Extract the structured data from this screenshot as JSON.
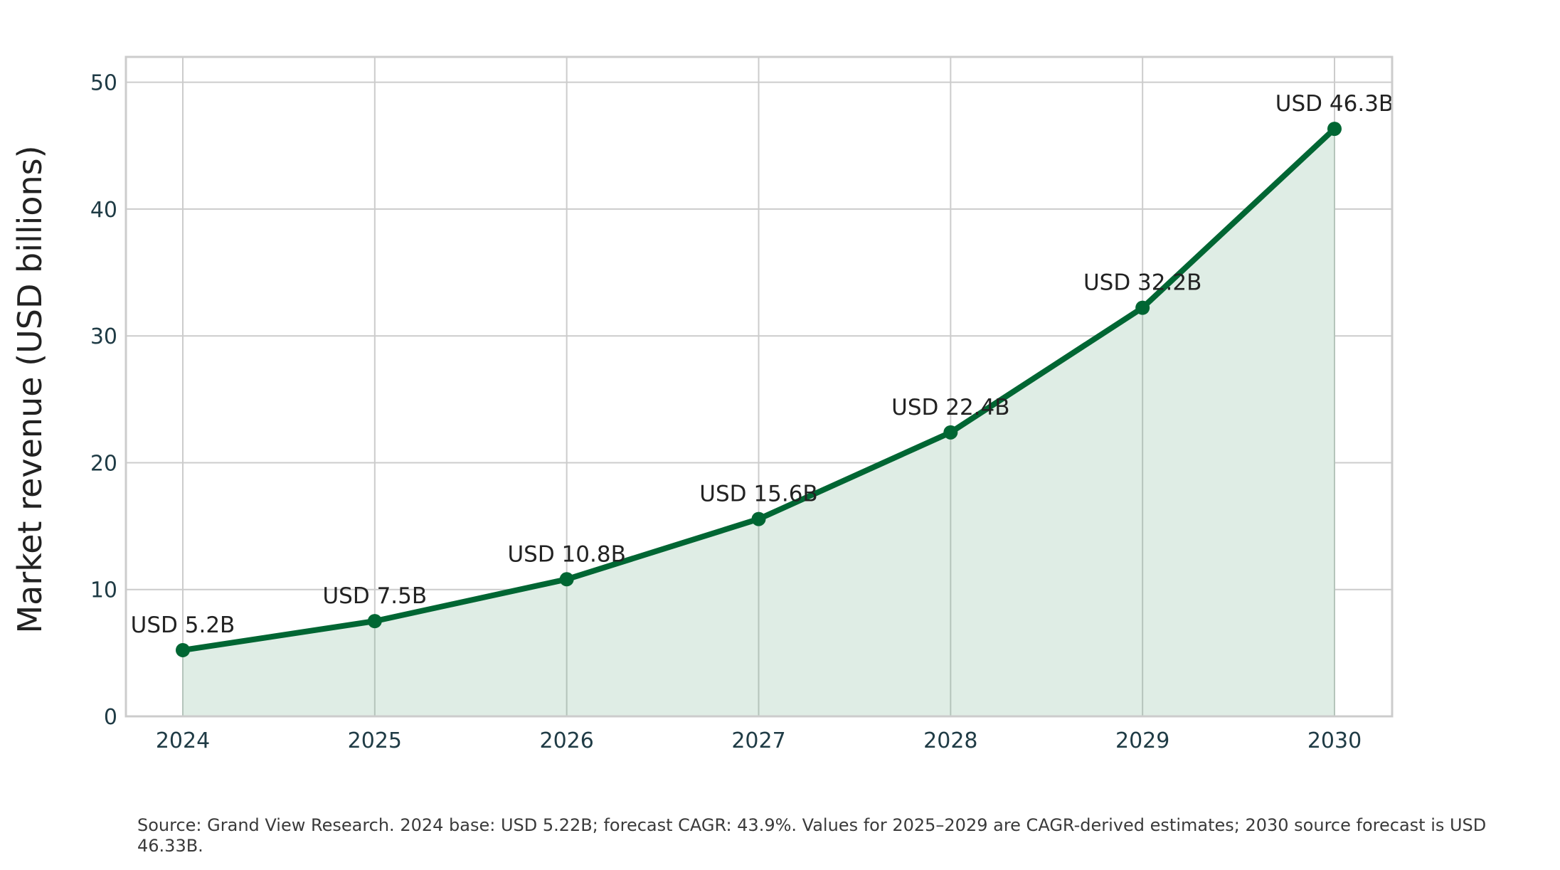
{
  "chart_data": {
    "type": "area",
    "title": "",
    "xlabel": "",
    "ylabel": "Market revenue (USD billions)",
    "x": [
      "2024",
      "2025",
      "2026",
      "2027",
      "2028",
      "2029",
      "2030"
    ],
    "series": [
      {
        "values": [
          5.22,
          7.51,
          10.81,
          15.56,
          22.39,
          32.22,
          46.33
        ],
        "data_labels": [
          "USD 5.2B",
          "USD 7.5B",
          "USD 10.8B",
          "USD 15.6B",
          "USD 22.4B",
          "USD 32.2B",
          "USD 46.3B"
        ]
      }
    ],
    "ylim": [
      0,
      52
    ],
    "yticks": [
      "0",
      "10",
      "20",
      "30",
      "40",
      "50"
    ],
    "grid": true,
    "colors": {
      "line": "#006633",
      "fill": "#dfede5",
      "grid": "#cccccc"
    }
  },
  "footnote": "Source: Grand View Research. 2024 base: USD 5.22B; forecast CAGR: 43.9%. Values for 2025–2029 are CAGR-derived estimates; 2030 source forecast is USD 46.33B."
}
